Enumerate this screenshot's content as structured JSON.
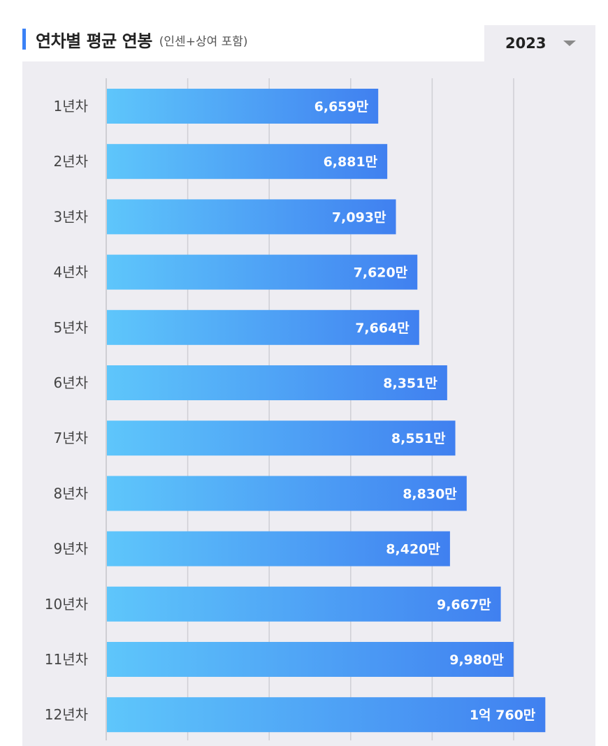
{
  "header": {
    "title": "연차별 평균 연봉",
    "subtitle": "(인센+상여 포함)"
  },
  "year_select": {
    "value": "2023",
    "icon": "caret-down-icon"
  },
  "colors": {
    "accent": "#3b82f6",
    "bar_start": "#5ec6fb",
    "bar_end": "#4080f0",
    "panel_bg": "#eeedf2",
    "grid": "#cfcfd4"
  },
  "chart_data": {
    "type": "bar",
    "orientation": "horizontal",
    "categories": [
      "1년차",
      "2년차",
      "3년차",
      "4년차",
      "5년차",
      "6년차",
      "7년차",
      "8년차",
      "9년차",
      "10년차",
      "11년차",
      "12년차"
    ],
    "values": [
      6659,
      6881,
      7093,
      7620,
      7664,
      8351,
      8551,
      8830,
      8420,
      9667,
      9980,
      10760
    ],
    "value_labels": [
      "6,659만",
      "6,881만",
      "7,093만",
      "7,620만",
      "7,664만",
      "8,351만",
      "8,551만",
      "8,830만",
      "8,420만",
      "9,667만",
      "9,980만",
      "1억 760만"
    ],
    "unit": "만",
    "xlim": [
      0,
      14000
    ],
    "grid": true,
    "legend": "none"
  }
}
